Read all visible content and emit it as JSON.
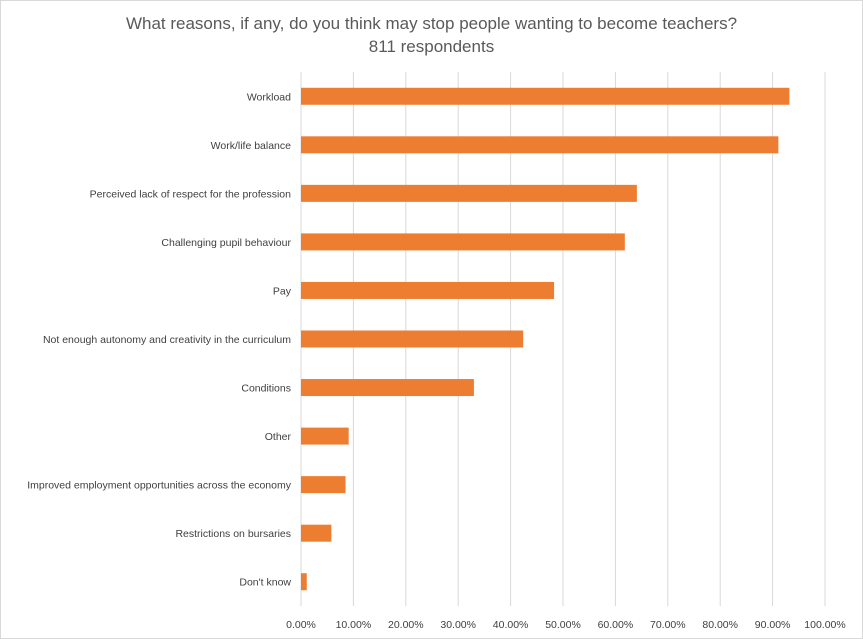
{
  "chart_data": {
    "type": "bar",
    "orientation": "horizontal",
    "title": "What reasons, if any, do you think may stop people wanting to become teachers?",
    "subtitle": "811 respondents",
    "categories": [
      "Workload",
      "Work/life balance",
      "Perceived lack of respect for the profession",
      "Challenging pupil behaviour",
      "Pay",
      "Not enough autonomy and creativity in the curriculum",
      "Conditions",
      "Other",
      "Improved employment opportunities across the economy",
      "Restrictions on bursaries",
      "Don't know"
    ],
    "values": [
      93.2,
      91.1,
      64.1,
      61.8,
      48.3,
      42.4,
      33.0,
      9.1,
      8.5,
      5.8,
      1.1
    ],
    "xlim": [
      0,
      100
    ],
    "x_ticks": [
      "0.00%",
      "10.00%",
      "20.00%",
      "30.00%",
      "40.00%",
      "50.00%",
      "60.00%",
      "70.00%",
      "80.00%",
      "90.00%",
      "100.00%"
    ],
    "xlabel": "",
    "ylabel": "",
    "grid": true,
    "legend": "none",
    "bar_color": "#ED7D31",
    "grid_color": "#D9D9D9"
  }
}
